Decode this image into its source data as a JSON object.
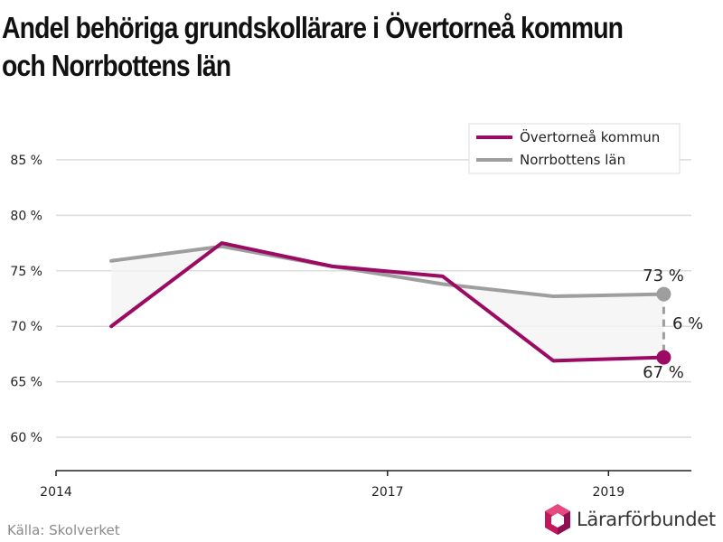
{
  "title_line1": "Andel behöriga grundskollärare i Övertorneå kommun",
  "title_line2": "och Norrbottens län",
  "source": "Källa: Skolverket",
  "logo_text": "Lärarförbundet",
  "chart_data": {
    "type": "line",
    "x": [
      2014.5,
      2015.5,
      2016.5,
      2017.5,
      2018.5,
      2019.5
    ],
    "series": [
      {
        "name": "Övertorneå kommun",
        "color": "#9b0a63",
        "values": [
          70.0,
          77.5,
          75.4,
          74.5,
          66.9,
          67.2
        ]
      },
      {
        "name": "Norrbottens län",
        "color": "#9e9e9e",
        "values": [
          75.9,
          77.2,
          75.4,
          73.8,
          72.7,
          72.9
        ]
      }
    ],
    "xlim": [
      2014,
      2019.75
    ],
    "ylim": [
      57,
      88
    ],
    "x_ticks": [
      2014,
      2017,
      2019
    ],
    "x_tick_labels": [
      "2014",
      "2017",
      "2019"
    ],
    "y_ticks": [
      60,
      65,
      70,
      75,
      80,
      85
    ],
    "y_tick_labels": [
      "60 %",
      "65 %",
      "70 %",
      "75 %",
      "80 %",
      "85 %"
    ],
    "grid": true,
    "legend_position": "top-right",
    "annotations": {
      "top_value": "73 %",
      "bottom_value": "67 %",
      "gap": "6 %"
    }
  }
}
